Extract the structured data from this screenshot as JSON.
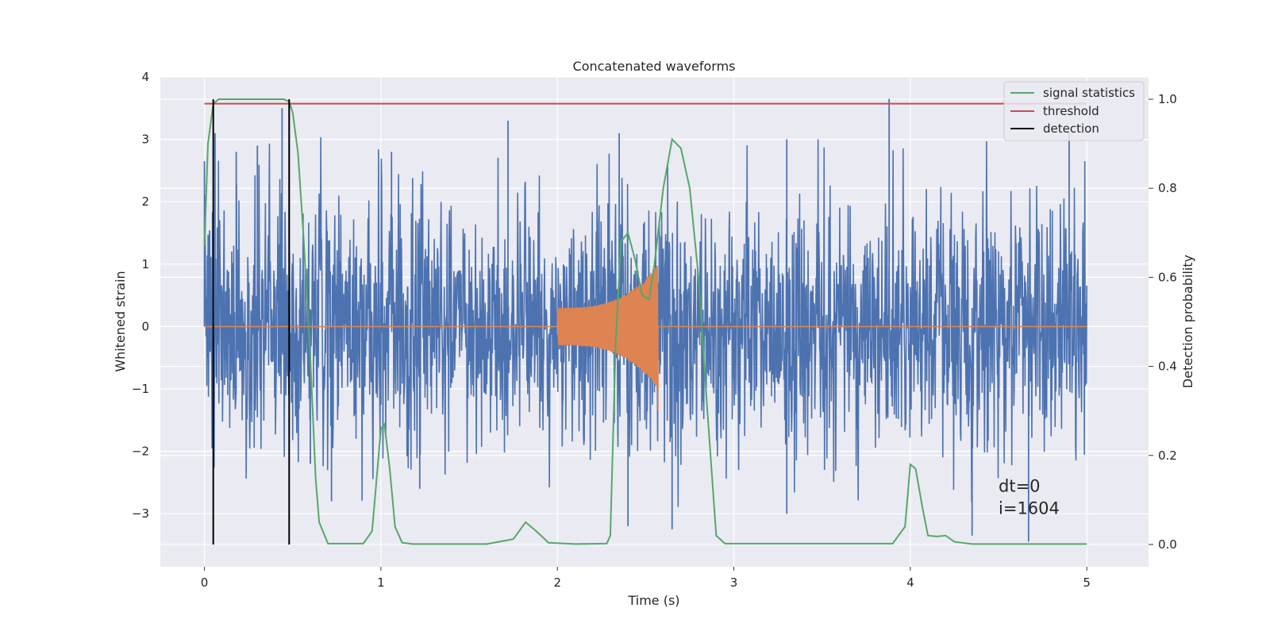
{
  "chart_data": {
    "type": "line",
    "title": "Concatenated waveforms",
    "xlabel": "Time (s)",
    "ylabel": "Whitened strain",
    "y2label": "Detection probability",
    "xlim": [
      -0.25,
      5.35
    ],
    "ylim": [
      -3.85,
      4.0
    ],
    "y2lim": [
      -0.05,
      1.05
    ],
    "x_ticks": [
      0,
      1,
      2,
      3,
      4,
      5
    ],
    "x_tick_labels": [
      "0",
      "1",
      "2",
      "3",
      "4",
      "5"
    ],
    "y_ticks": [
      -3,
      -2,
      -1,
      0,
      1,
      2,
      3,
      4
    ],
    "y_tick_labels": [
      "−3",
      "−2",
      "−1",
      "0",
      "1",
      "2",
      "3",
      "4"
    ],
    "y2_ticks": [
      0.0,
      0.2,
      0.4,
      0.6,
      0.8,
      1.0
    ],
    "y2_tick_labels": [
      "0.0",
      "0.2",
      "0.4",
      "0.6",
      "0.8",
      "1.0"
    ],
    "grid": true,
    "legend_position": "top-right",
    "series": [
      {
        "name": "",
        "kind": "noise",
        "axis": "left",
        "color": "#4c72b0",
        "x_range": [
          0,
          5
        ],
        "typical_amplitude": 1.0,
        "peak_points": [
          {
            "x": 0.0,
            "y": 2.65
          },
          {
            "x": 0.06,
            "y": 3.1
          },
          {
            "x": 0.18,
            "y": 2.8
          },
          {
            "x": 0.3,
            "y": 2.9
          },
          {
            "x": 0.44,
            "y": 3.5
          },
          {
            "x": 0.48,
            "y": 3.6
          },
          {
            "x": 1.06,
            "y": 2.8
          },
          {
            "x": 1.72,
            "y": 3.3
          },
          {
            "x": 2.35,
            "y": 3.1
          },
          {
            "x": 3.3,
            "y": 3.0
          },
          {
            "x": 3.88,
            "y": 3.65
          },
          {
            "x": 4.9,
            "y": 3.1
          },
          {
            "x": 0.6,
            "y": -2.2
          },
          {
            "x": 0.72,
            "y": -2.8
          },
          {
            "x": 1.22,
            "y": -2.6
          },
          {
            "x": 2.4,
            "y": -3.2
          },
          {
            "x": 2.65,
            "y": -3.25
          },
          {
            "x": 3.3,
            "y": -3.0
          },
          {
            "x": 4.35,
            "y": -3.35
          },
          {
            "x": 4.67,
            "y": -3.45
          }
        ]
      },
      {
        "name": "",
        "kind": "chirp",
        "axis": "left",
        "color": "#dd8452",
        "start_x": 2.0,
        "merger_x": 2.57,
        "start_amplitude": 0.3,
        "peak_amplitude": 1.0,
        "min_amplitude": -1.35
      },
      {
        "name": "signal statistics",
        "axis": "right",
        "color": "#55a868",
        "x": [
          0.0,
          0.02,
          0.05,
          0.08,
          0.1,
          0.15,
          0.3,
          0.45,
          0.48,
          0.5,
          0.53,
          0.56,
          0.6,
          0.63,
          0.65,
          0.7,
          0.9,
          0.95,
          1.0,
          1.02,
          1.05,
          1.08,
          1.12,
          1.18,
          1.6,
          1.75,
          1.82,
          1.88,
          1.95,
          2.1,
          2.28,
          2.3,
          2.33,
          2.36,
          2.4,
          2.44,
          2.48,
          2.52,
          2.55,
          2.6,
          2.65,
          2.7,
          2.75,
          2.8,
          2.85,
          2.9,
          2.95,
          3.2,
          3.9,
          3.97,
          4.0,
          4.03,
          4.07,
          4.1,
          4.15,
          4.2,
          4.25,
          4.35,
          4.6,
          5.0
        ],
        "y": [
          0.67,
          0.9,
          0.99,
          1.0,
          1.0,
          1.0,
          1.0,
          1.0,
          0.995,
          0.97,
          0.88,
          0.7,
          0.42,
          0.15,
          0.05,
          0.002,
          0.002,
          0.03,
          0.26,
          0.27,
          0.17,
          0.04,
          0.004,
          0.001,
          0.001,
          0.012,
          0.05,
          0.03,
          0.004,
          0.001,
          0.002,
          0.02,
          0.45,
          0.68,
          0.7,
          0.64,
          0.56,
          0.55,
          0.63,
          0.8,
          0.91,
          0.89,
          0.8,
          0.6,
          0.3,
          0.02,
          0.002,
          0.002,
          0.002,
          0.04,
          0.18,
          0.17,
          0.08,
          0.02,
          0.018,
          0.02,
          0.006,
          0.001,
          0.001,
          0.001
        ]
      },
      {
        "name": "threshold",
        "axis": "right",
        "color": "#c44e52",
        "x": [
          0.0,
          5.0
        ],
        "y": [
          0.99,
          0.99
        ]
      },
      {
        "name": "detection",
        "kind": "vlines",
        "axis": "right",
        "color": "#000000",
        "x": [
          0.05,
          0.48
        ],
        "y_range": [
          0.0,
          1.0
        ]
      }
    ],
    "legend": [
      "signal statistics",
      "threshold",
      "detection"
    ],
    "annotation": {
      "line1": "dt=0",
      "line2": "i=1604",
      "x": 4.5,
      "y": -2.65
    }
  }
}
